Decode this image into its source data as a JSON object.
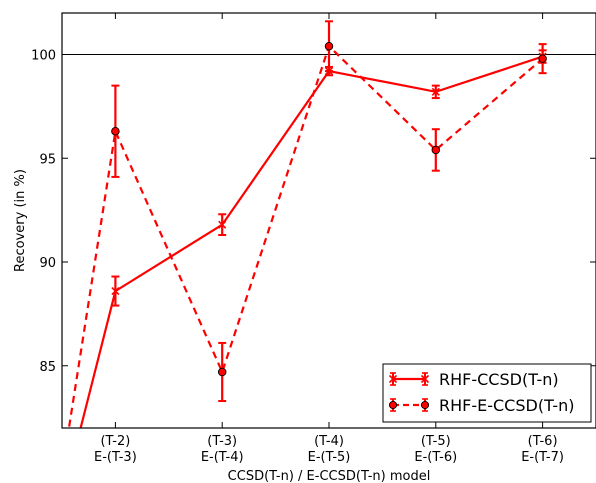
{
  "chart_data": {
    "type": "line",
    "xlabel": "CCSD(T-n) / E-CCSD(T-n) model",
    "ylabel": "Recovery (in %)",
    "categories": [
      [
        "(T-2)",
        "E-(T-3)"
      ],
      [
        "(T-3)",
        "E-(T-4)"
      ],
      [
        "(T-4)",
        "E-(T-5)"
      ],
      [
        "(T-5)",
        "E-(T-6)"
      ],
      [
        "(T-6)",
        "E-(T-7)"
      ]
    ],
    "ylim": [
      82,
      102
    ],
    "yticks": [
      85,
      90,
      95,
      100
    ],
    "reference_line": 100,
    "grid": false,
    "legend_position": "lower-right",
    "series": [
      {
        "name": "RHF-CCSD(T-n)",
        "style": "solid",
        "marker": "x",
        "color": "#ff0000",
        "lead_in": {
          "x": 0.65,
          "y": 81.5
        },
        "values": [
          88.6,
          91.8,
          99.2,
          98.2,
          99.9
        ],
        "errors": [
          0.7,
          0.5,
          0.2,
          0.3,
          0.3
        ]
      },
      {
        "name": "RHF-E-CCSD(T-n)",
        "style": "dashed",
        "marker": "circle",
        "color": "#ff0000",
        "lead_in": {
          "x": 0.55,
          "y": 81.5
        },
        "values": [
          96.3,
          84.7,
          100.4,
          95.4,
          99.8
        ],
        "errors": [
          2.2,
          1.4,
          1.2,
          1.0,
          0.7
        ]
      }
    ]
  }
}
